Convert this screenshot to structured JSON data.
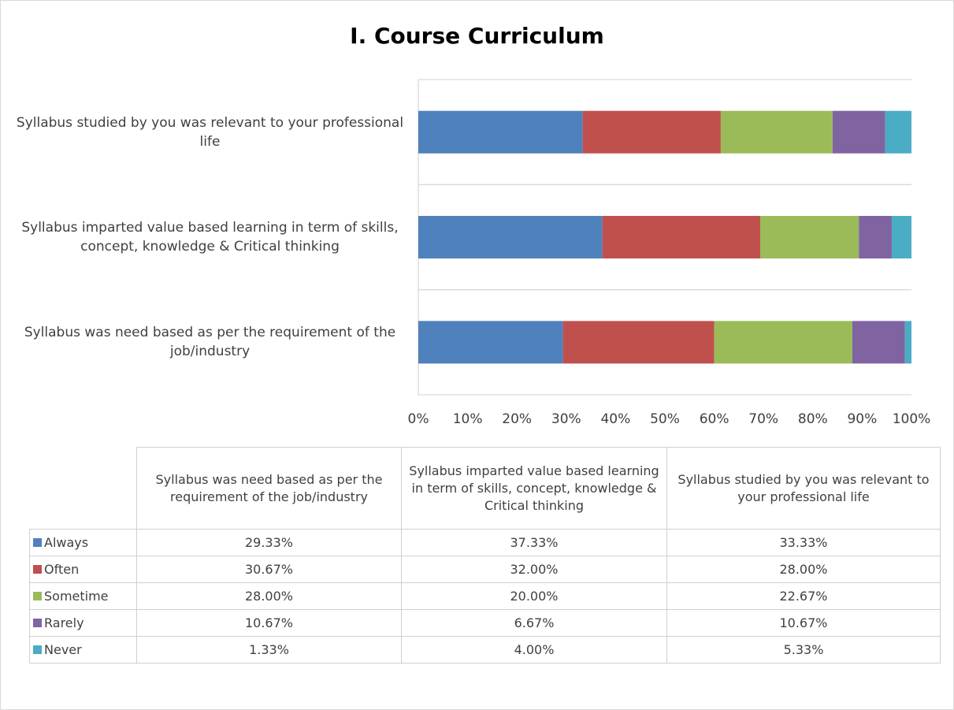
{
  "chart_data": {
    "type": "stacked_barh",
    "title": "I. Course Curriculum",
    "categories": [
      "Syllabus was need based as per the requirement of the job/industry",
      "Syllabus imparted value based learning in term of skills, concept, knowledge & Critical thinking",
      "Syllabus studied by you was relevant to your professional life"
    ],
    "series": [
      {
        "name": "Always",
        "color": "#4f81bd",
        "values": [
          29.33,
          37.33,
          33.33
        ],
        "value_labels": [
          "29.33%",
          "37.33%",
          "33.33%"
        ]
      },
      {
        "name": "Often",
        "color": "#c0504d",
        "values": [
          30.67,
          32.0,
          28.0
        ],
        "value_labels": [
          "30.67%",
          "32.00%",
          "28.00%"
        ]
      },
      {
        "name": "Sometime",
        "color": "#9bbb59",
        "values": [
          28.0,
          20.0,
          22.67
        ],
        "value_labels": [
          "28.00%",
          "20.00%",
          "22.67%"
        ]
      },
      {
        "name": "Rarely",
        "color": "#8064a2",
        "values": [
          10.67,
          6.67,
          10.67
        ],
        "value_labels": [
          "10.67%",
          "6.67%",
          "10.67%"
        ]
      },
      {
        "name": "Never",
        "color": "#4bacc6",
        "values": [
          1.33,
          4.0,
          5.33
        ],
        "value_labels": [
          "1.33%",
          "4.00%",
          "5.33%"
        ]
      }
    ],
    "xlim": [
      0,
      100
    ],
    "xticks": [
      {
        "value": 0,
        "label": "0%"
      },
      {
        "value": 10,
        "label": "10%"
      },
      {
        "value": 20,
        "label": "20%"
      },
      {
        "value": 30,
        "label": "30%"
      },
      {
        "value": 40,
        "label": "40%"
      },
      {
        "value": 50,
        "label": "50%"
      },
      {
        "value": 60,
        "label": "60%"
      },
      {
        "value": 70,
        "label": "70%"
      },
      {
        "value": 80,
        "label": "80%"
      },
      {
        "value": 90,
        "label": "90%"
      },
      {
        "value": 100,
        "label": "100%"
      }
    ],
    "grid": true,
    "data_table": true
  }
}
